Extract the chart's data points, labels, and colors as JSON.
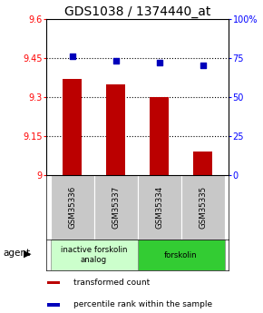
{
  "title": "GDS1038 / 1374440_at",
  "categories": [
    "GSM35336",
    "GSM35337",
    "GSM35334",
    "GSM35335"
  ],
  "bar_values": [
    9.37,
    9.35,
    9.3,
    9.09
  ],
  "dot_values": [
    76,
    73,
    72,
    70
  ],
  "ylim_left": [
    9.0,
    9.6
  ],
  "ylim_right": [
    0,
    100
  ],
  "yticks_left": [
    9.0,
    9.15,
    9.3,
    9.45,
    9.6
  ],
  "ytick_labels_left": [
    "9",
    "9.15",
    "9.3",
    "9.45",
    "9.6"
  ],
  "yticks_right": [
    0,
    25,
    50,
    75,
    100
  ],
  "ytick_labels_right": [
    "0",
    "25",
    "50",
    "75",
    "100%"
  ],
  "hlines": [
    9.15,
    9.3,
    9.45
  ],
  "bar_color": "#bb0000",
  "dot_color": "#0000bb",
  "bar_width": 0.45,
  "agent_groups": [
    {
      "label": "inactive forskolin\nanalog",
      "span": [
        0,
        2
      ],
      "color": "#ccffcc"
    },
    {
      "label": "forskolin",
      "span": [
        2,
        4
      ],
      "color": "#33cc33"
    }
  ],
  "agent_label": "agent",
  "legend_items": [
    {
      "color": "#bb0000",
      "label": "transformed count"
    },
    {
      "color": "#0000bb",
      "label": "percentile rank within the sample"
    }
  ],
  "title_fontsize": 10,
  "tick_fontsize": 7,
  "label_fontsize": 7.5,
  "sample_label_color": "#c8c8c8"
}
